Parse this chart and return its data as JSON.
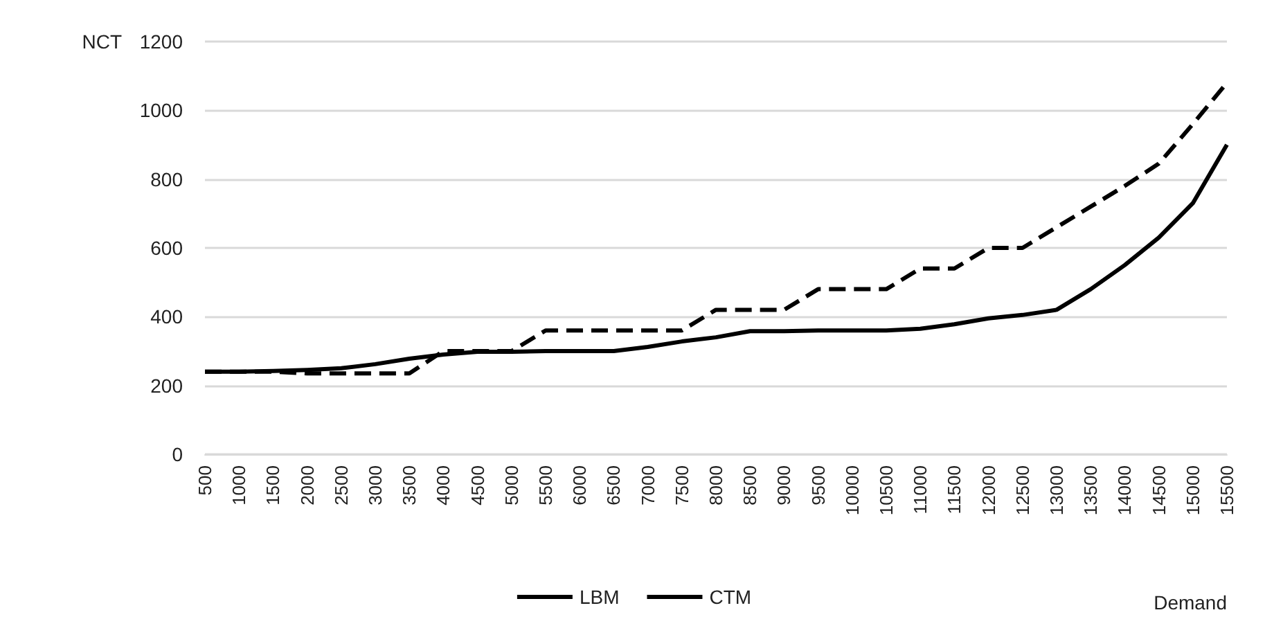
{
  "chart_data": {
    "type": "line",
    "xlabel": "Demand",
    "ylabel": "NCT",
    "categories": [
      "500",
      "1000",
      "1500",
      "2000",
      "2500",
      "3000",
      "3500",
      "4000",
      "4500",
      "5000",
      "5500",
      "6000",
      "6500",
      "7000",
      "7500",
      "8000",
      "8500",
      "9000",
      "9500",
      "10000",
      "10500",
      "11000",
      "11500",
      "12000",
      "12500",
      "13000",
      "13500",
      "14000",
      "14500",
      "15000",
      "15500"
    ],
    "series": [
      {
        "name": "LBM",
        "color": "#000000",
        "line_style": "solid",
        "values": [
          240,
          240,
          242,
          245,
          250,
          262,
          278,
          290,
          298,
          298,
          300,
          300,
          300,
          312,
          328,
          340,
          358,
          358,
          360,
          360,
          360,
          365,
          378,
          395,
          405,
          420,
          480,
          550,
          630,
          730,
          900
        ]
      },
      {
        "name": "CTM",
        "color": "#000000",
        "line_style": "dashed",
        "values": [
          240,
          240,
          240,
          235,
          235,
          235,
          235,
          300,
          300,
          300,
          360,
          360,
          360,
          360,
          360,
          420,
          420,
          420,
          480,
          480,
          480,
          540,
          540,
          600,
          600,
          660,
          720,
          780,
          845,
          960,
          1080
        ]
      }
    ],
    "ylim": [
      0,
      1200
    ],
    "yticks": [
      0,
      200,
      400,
      600,
      800,
      1000,
      1200
    ],
    "grid": "y",
    "legend": "bottom",
    "marker": "none"
  }
}
